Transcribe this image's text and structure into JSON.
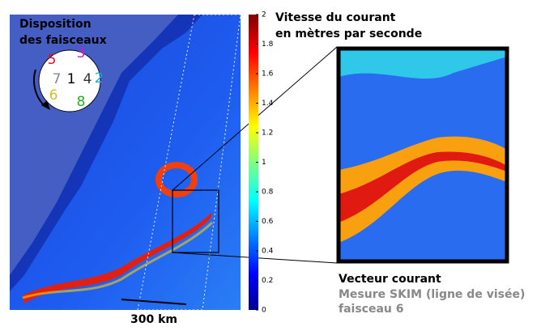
{
  "beam_layout": {
    "title_line1": "Disposition",
    "title_line2": "des faisceaux",
    "beams": [
      "5",
      "3",
      "7",
      "1",
      "4",
      "2",
      "6",
      "8"
    ]
  },
  "colorbar": {
    "label_line1": "Vitesse du courant",
    "label_line2": "en mètres par seconde",
    "ticks": [
      0,
      0.2,
      0.4,
      0.6,
      0.8,
      1,
      1.2,
      1.4,
      1.6,
      1.8,
      2
    ]
  },
  "inset_legend": {
    "vector": "Vecteur courant",
    "measure": "Mesure SKIM (ligne de visée)",
    "beam": "faisceau 6"
  },
  "scale_bar": "300 km"
}
